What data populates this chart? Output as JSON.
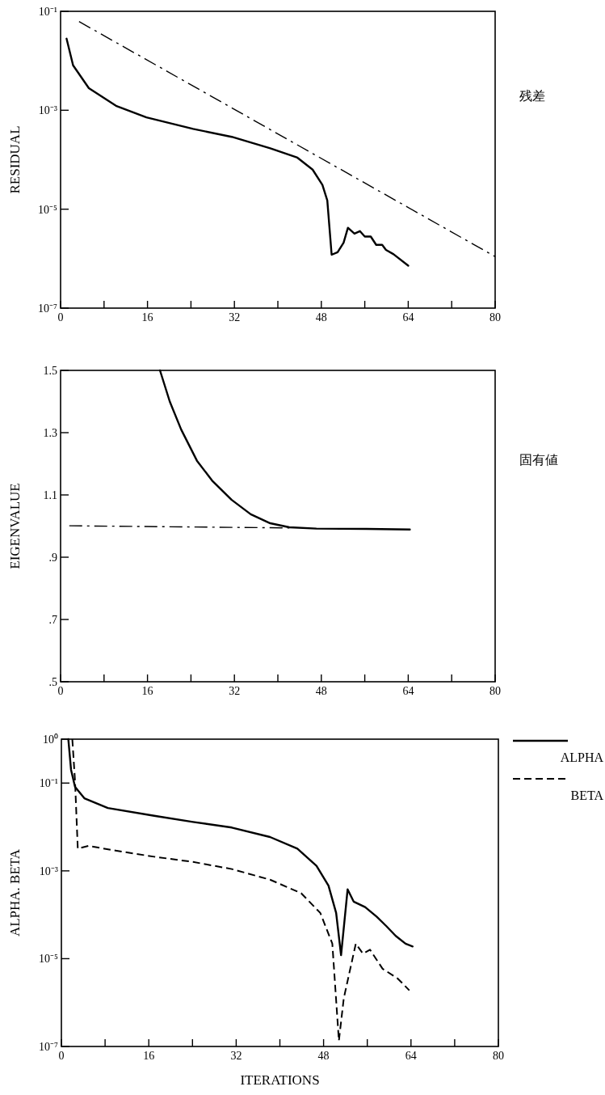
{
  "chart_data": [
    {
      "type": "line",
      "ylabel": "RESIDUAL",
      "annotations": [
        "残差"
      ],
      "log": "y",
      "xlim": [
        0,
        80
      ],
      "ylim": [
        1e-07,
        0.1
      ],
      "xticks": [
        0,
        {
          "value": 8,
          "label": null
        },
        16,
        {
          "value": 24,
          "label": null
        },
        32,
        {
          "value": 40,
          "label": null
        },
        48,
        {
          "value": 56,
          "label": null
        },
        64,
        {
          "value": 72,
          "label": null
        },
        80
      ],
      "yticks": [
        {
          "value": 0.1,
          "label": "10⁻¹"
        },
        {
          "value": 0.001,
          "label": "10⁻³"
        },
        {
          "value": 1e-05,
          "label": "10⁻⁵"
        },
        {
          "value": 1e-07,
          "label": "10⁻⁷"
        }
      ],
      "series": [
        {
          "color": "#000000",
          "line_style": "solid",
          "x": [
            1.1,
            2.3,
            5.2,
            10.2,
            15.8,
            24.4,
            31.5,
            38.6,
            43.6,
            46.4,
            48.2,
            49.1,
            49.9,
            51,
            52.1,
            52.9,
            54.1,
            55.1,
            56,
            57.1,
            58.1,
            59.2,
            59.9,
            61.3,
            64
          ],
          "values": [
            0.028,
            0.0081,
            0.0028,
            0.00123,
            0.00072,
            0.00042,
            0.00029,
            0.00017,
            0.00011,
            6.3e-05,
            3.1e-05,
            1.5e-05,
            1.2e-06,
            1.35e-06,
            2.1e-06,
            4.2e-06,
            3.2e-06,
            3.6e-06,
            2.8e-06,
            2.8e-06,
            1.9e-06,
            1.9e-06,
            1.5e-06,
            1.23e-06,
            7.2e-07
          ]
        },
        {
          "color": "#000000",
          "line_style": "dashdot",
          "x": [
            3.4,
            80
          ],
          "values": [
            0.062,
            1.1e-06
          ]
        }
      ]
    },
    {
      "type": "line",
      "ylabel": "EIGENVALUE",
      "annotations": [
        "固有値"
      ],
      "xlim": [
        0,
        80
      ],
      "ylim": [
        0.5,
        1.5
      ],
      "xticks": [
        0,
        {
          "value": 8,
          "label": null
        },
        16,
        {
          "value": 24,
          "label": null
        },
        32,
        {
          "value": 40,
          "label": null
        },
        48,
        {
          "value": 56,
          "label": null
        },
        64,
        {
          "value": 72,
          "label": null
        },
        80
      ],
      "yticks": [
        {
          "value": 0.5,
          "label": ".5"
        },
        {
          "value": 0.7,
          "label": ".7"
        },
        {
          "value": 0.9,
          "label": ".9"
        },
        1.1,
        1.3,
        1.5
      ],
      "series": [
        {
          "color": "#000000",
          "line_style": "solid",
          "x": [
            18.3,
            20.1,
            22.2,
            25.1,
            27.9,
            31.5,
            35,
            38.6,
            42.1,
            47.1,
            56.3,
            64.3
          ],
          "values": [
            1.5,
            1.4,
            1.31,
            1.21,
            1.146,
            1.084,
            1.038,
            1.009,
            0.996,
            0.992,
            0.991,
            0.989
          ]
        },
        {
          "color": "#000000",
          "line_style": "dashdot",
          "x": [
            1.6,
            42.1
          ],
          "values": [
            1.001,
            0.994
          ]
        }
      ]
    },
    {
      "type": "line",
      "ylabel": "ALPHA. BETA",
      "xlabel": "ITERATIONS",
      "log": "y",
      "legend": "top right",
      "xlim": [
        0,
        80
      ],
      "ylim": [
        1e-07,
        1
      ],
      "xticks": [
        0,
        {
          "value": 8,
          "label": null
        },
        16,
        {
          "value": 24,
          "label": null
        },
        32,
        {
          "value": 40,
          "label": null
        },
        48,
        {
          "value": 56,
          "label": null
        },
        64,
        {
          "value": 72,
          "label": null
        },
        80
      ],
      "yticks": [
        {
          "value": 1,
          "label": "10⁰"
        },
        {
          "value": 0.1,
          "label": "10⁻¹"
        },
        {
          "value": 0.001,
          "label": "10⁻³"
        },
        {
          "value": 1e-05,
          "label": "10⁻⁵"
        },
        {
          "value": 1e-07,
          "label": "10⁻⁷"
        }
      ],
      "series": [
        {
          "name": "ALPHA",
          "color": "#000000",
          "line_style": "solid",
          "x": [
            1.27,
            1.77,
            2.5,
            4.2,
            8.5,
            17,
            24.1,
            31.2,
            38.2,
            43.2,
            46.7,
            48.9,
            50.3,
            51.2,
            52.4,
            53.5,
            55.6,
            57.7,
            59.5,
            61.2,
            63,
            64.3
          ],
          "values": [
            1,
            0.2,
            0.082,
            0.045,
            0.027,
            0.018,
            0.013,
            0.0097,
            0.0059,
            0.0032,
            0.0013,
            0.00046,
            0.00011,
            1.2e-05,
            0.00038,
            0.0002,
            0.00015,
            9.1e-05,
            5.5e-05,
            3.3e-05,
            2.2e-05,
            1.9e-05
          ]
        },
        {
          "name": "BETA",
          "color": "#000000",
          "line_style": "dashed",
          "x": [
            2,
            2.5,
            3,
            4.96,
            9.9,
            17,
            24.1,
            31.2,
            38.2,
            43.9,
            47.4,
            49.6,
            50.8,
            51.7,
            53.9,
            55.2,
            56.5,
            58.8,
            61.6,
            63.7
          ],
          "values": [
            1,
            0.11,
            0.0032,
            0.0037,
            0.0029,
            0.0021,
            0.0016,
            0.0011,
            0.00063,
            0.00031,
            0.00011,
            2.2e-05,
            1.35e-07,
            1.26e-06,
            2.2e-05,
            1.3e-05,
            1.6e-05,
            5.9e-06,
            3.5e-06,
            1.9e-06
          ]
        }
      ]
    }
  ]
}
